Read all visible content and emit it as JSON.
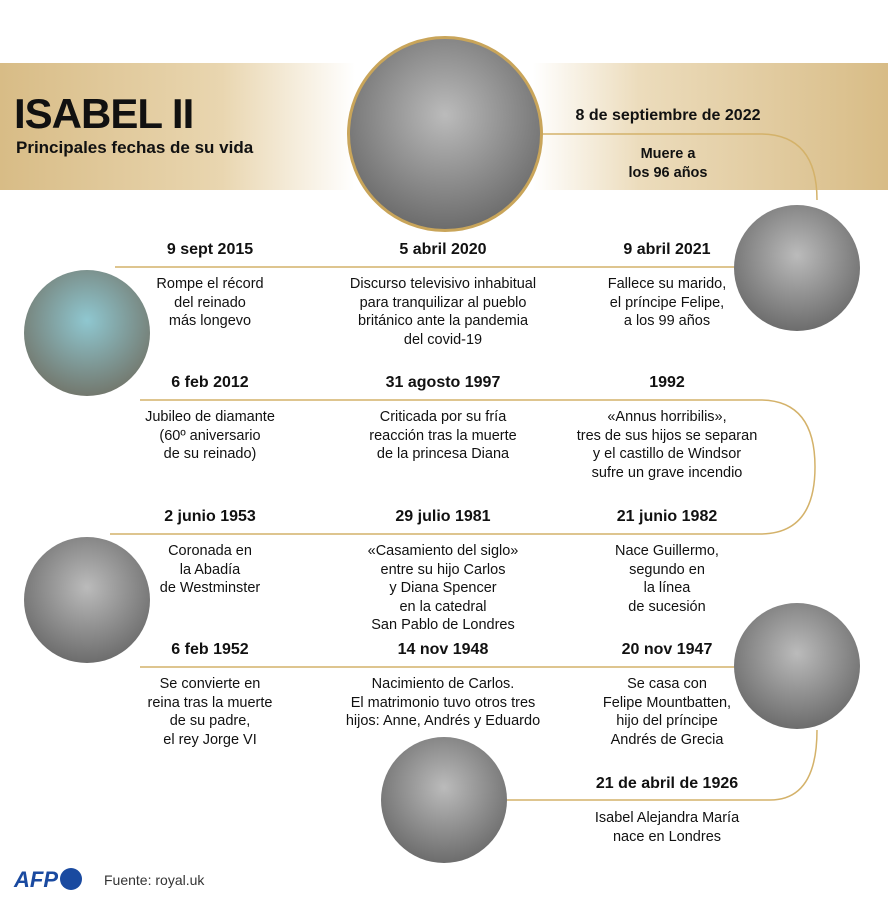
{
  "header": {
    "title": "ISABEL II",
    "subtitle": "Principales fechas de su vida"
  },
  "colors": {
    "line": "#d4b26a",
    "band": "#d8bc86",
    "logo": "#1a4aa0"
  },
  "events": [
    {
      "date": "8 de septiembre de 2022",
      "text": "Muere a\nlos 96 años"
    },
    {
      "date": "9 sept 2015",
      "text": "Rompe el récord\ndel reinado\nmás longevo"
    },
    {
      "date": "5 abril 2020",
      "text": "Discurso televisivo inhabitual\npara tranquilizar al pueblo\nbritánico ante la pandemia\ndel covid-19"
    },
    {
      "date": "9 abril 2021",
      "text": "Fallece su marido,\nel príncipe Felipe,\na los 99 años"
    },
    {
      "date": "6 feb 2012",
      "text": "Jubileo de diamante\n(60º aniversario\nde su reinado)"
    },
    {
      "date": "31 agosto 1997",
      "text": "Criticada por su fría\nreacción tras la muerte\nde la princesa Diana"
    },
    {
      "date": "1992",
      "text": "«Annus horribilis»,\ntres de sus hijos se separan\ny el castillo de Windsor\nsufre un grave incendio"
    },
    {
      "date": "2 junio 1953",
      "text": "Coronada en\nla Abadía\nde Westminster"
    },
    {
      "date": "29 julio 1981",
      "text": "«Casamiento del siglo»\nentre su hijo Carlos\ny Diana Spencer\nen la catedral\nSan Pablo de Londres"
    },
    {
      "date": "21 junio 1982",
      "text": "Nace Guillermo,\nsegundo en\nla línea\nde sucesión"
    },
    {
      "date": "6 feb 1952",
      "text": "Se convierte en\nreina tras la muerte\nde su padre,\nel rey Jorge VI"
    },
    {
      "date": "14 nov 1948",
      "text": "Nacimiento de Carlos.\nEl matrimonio tuvo otros tres\nhijos: Anne, Andrés y Eduardo"
    },
    {
      "date": "20 nov 1947",
      "text": "Se casa con\nFelipe Mountbatten,\nhijo del príncipe\nAndrés de Grecia"
    },
    {
      "date": "21 de abril de 1926",
      "text": "Isabel Alejandra María\nnace en Londres"
    }
  ],
  "footer": {
    "logo": "AFP",
    "source": "Fuente: royal.uk"
  }
}
